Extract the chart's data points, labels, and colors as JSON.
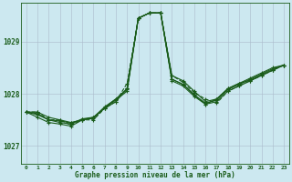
{
  "title": "Graphe pression niveau de la mer (hPa)",
  "xlabel": "Graphe pression niveau de la mer (hPa)",
  "background_color": "#cce8f0",
  "plot_bg_color": "#cce8f0",
  "grid_color": "#aabbcc",
  "line_color": "#1a5c1a",
  "xlim": [
    -0.5,
    23.5
  ],
  "ylim": [
    1026.65,
    1029.75
  ],
  "yticks": [
    1027,
    1028,
    1029
  ],
  "xticks": [
    0,
    1,
    2,
    3,
    4,
    5,
    6,
    7,
    8,
    9,
    10,
    11,
    12,
    13,
    14,
    15,
    16,
    17,
    18,
    19,
    20,
    21,
    22,
    23
  ],
  "series": [
    {
      "x": [
        0,
        1,
        2,
        3,
        4,
        5,
        6,
        7,
        8,
        9,
        10,
        11,
        12,
        13,
        14,
        15,
        16,
        17,
        18,
        19,
        20,
        21,
        22,
        23
      ],
      "y": [
        1027.65,
        1027.65,
        1027.55,
        1027.5,
        1027.45,
        1027.5,
        1027.55,
        1027.75,
        1027.9,
        1028.1,
        1029.45,
        1029.55,
        1029.55,
        1028.35,
        1028.25,
        1028.05,
        1027.85,
        1027.9,
        1028.1,
        1028.2,
        1028.3,
        1028.4,
        1028.5,
        1028.55
      ],
      "dashed": false
    },
    {
      "x": [
        0,
        1,
        2,
        3,
        4,
        5,
        6,
        7,
        8,
        9,
        10,
        11,
        12,
        13,
        14,
        15,
        16,
        17,
        18,
        19,
        20,
        21,
        22,
        23
      ],
      "y": [
        1027.65,
        1027.62,
        1027.5,
        1027.48,
        1027.44,
        1027.51,
        1027.54,
        1027.73,
        1027.88,
        1028.05,
        1029.45,
        1029.55,
        1029.55,
        1028.28,
        1028.18,
        1027.98,
        1027.82,
        1027.88,
        1028.08,
        1028.18,
        1028.28,
        1028.38,
        1028.48,
        1028.55
      ],
      "dashed": false
    },
    {
      "x": [
        0,
        1,
        2,
        3,
        4,
        5,
        6,
        7,
        8,
        9,
        10,
        11,
        12,
        13,
        14,
        15,
        16,
        17,
        18,
        19,
        20,
        21,
        22,
        23
      ],
      "y": [
        1027.65,
        1027.6,
        1027.5,
        1027.45,
        1027.42,
        1027.52,
        1027.55,
        1027.72,
        1027.85,
        1028.1,
        1029.45,
        1029.55,
        1029.55,
        1028.25,
        1028.15,
        1027.95,
        1027.8,
        1027.85,
        1028.05,
        1028.15,
        1028.25,
        1028.35,
        1028.45,
        1028.55
      ],
      "dashed": false
    },
    {
      "x": [
        0,
        1,
        2,
        3,
        4,
        5,
        6,
        7,
        8,
        9,
        10,
        11,
        12,
        13,
        14,
        15,
        16,
        17,
        18,
        19,
        20,
        21,
        22,
        23
      ],
      "y": [
        1027.65,
        1027.55,
        1027.45,
        1027.42,
        1027.38,
        1027.5,
        1027.53,
        1027.74,
        1027.9,
        1028.08,
        1029.45,
        1029.55,
        1029.55,
        1028.28,
        1028.18,
        1027.98,
        1027.8,
        1027.9,
        1028.1,
        1028.2,
        1028.26,
        1028.36,
        1028.46,
        1028.55
      ],
      "dashed": false
    },
    {
      "x": [
        0,
        1,
        2,
        3,
        4,
        5,
        6,
        7,
        8,
        9,
        10,
        11,
        12,
        13,
        14,
        15,
        16,
        17,
        18,
        19,
        20,
        21,
        22,
        23
      ],
      "y": [
        1027.65,
        1027.65,
        1027.5,
        1027.5,
        1027.4,
        1027.5,
        1027.5,
        1027.72,
        1027.85,
        1028.2,
        1029.45,
        1029.55,
        1029.55,
        1028.35,
        1028.22,
        1028.02,
        1027.9,
        1027.82,
        1028.05,
        1028.15,
        1028.25,
        1028.35,
        1028.45,
        1028.55
      ],
      "dashed": true
    }
  ],
  "marker": "+",
  "markersize": 3,
  "linewidth": 0.8
}
